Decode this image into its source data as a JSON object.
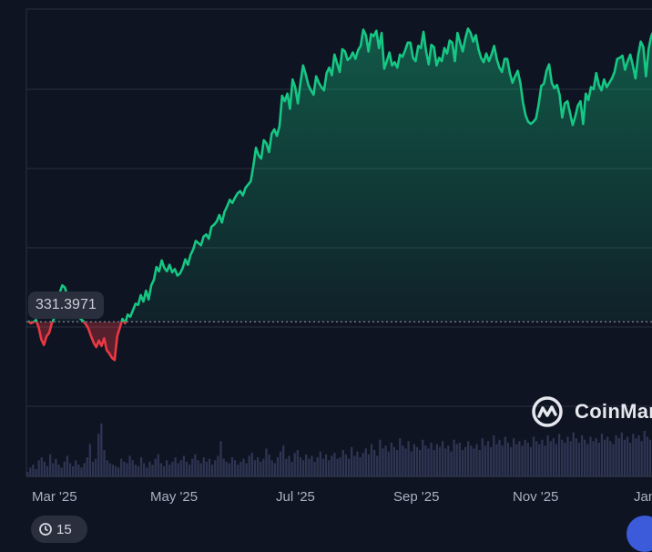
{
  "chart_data": {
    "type": "line",
    "x_ticks": [
      "Mar '25",
      "May '25",
      "Jul '25",
      "Sep '25",
      "Nov '25",
      "Jan"
    ],
    "baseline": 331.3971,
    "baseline_label": "331.3971",
    "ylim": [
      250,
      620
    ],
    "colors": {
      "up": "#16c784",
      "down": "#ea3943",
      "grid": "#2b3140",
      "volume": "#2e3552",
      "background": "#0f1422"
    },
    "series": [
      {
        "values": [
          332,
          330,
          331,
          333,
          326,
          315,
          310,
          318,
          321,
          330,
          335,
          338,
          358,
          365,
          363,
          355,
          348,
          340,
          336,
          338,
          334,
          332,
          329,
          325,
          318,
          312,
          308,
          314,
          309,
          316,
          305,
          302,
          298,
          296,
          318,
          326,
          334,
          330,
          338,
          336,
          342,
          348,
          347,
          356,
          350,
          360,
          352,
          365,
          370,
          382,
          378,
          388,
          381,
          378,
          384,
          377,
          380,
          374,
          376,
          381,
          389,
          384,
          393,
          398,
          406,
          404,
          402,
          410,
          412,
          408,
          419,
          421,
          424,
          430,
          423,
          433,
          438,
          444,
          441,
          446,
          450,
          452,
          448,
          455,
          458,
          461,
          475,
          492,
          485,
          482,
          499,
          496,
          488,
          505,
          509,
          503,
          512,
          540,
          535,
          542,
          528,
          555,
          548,
          533,
          552,
          568,
          560,
          550,
          545,
          541,
          558,
          552,
          548,
          545,
          561,
          566,
          559,
          578,
          570,
          562,
          583,
          581,
          573,
          575,
          580,
          574,
          582,
          586,
          601,
          596,
          581,
          597,
          595,
          600,
          584,
          598,
          565,
          572,
          580,
          568,
          571,
          566,
          578,
          576,
          582,
          589,
          589,
          575,
          572,
          586,
          584,
          599,
          581,
          569,
          587,
          585,
          568,
          575,
          572,
          584,
          579,
          591,
          589,
          572,
          598,
          589,
          581,
          593,
          602,
          598,
          590,
          596,
          583,
          575,
          571,
          579,
          572,
          578,
          586,
          574,
          566,
          562,
          574,
          574,
          561,
          552,
          558,
          563,
          552,
          534,
          522,
          516,
          514,
          516,
          519,
          532,
          549,
          551,
          563,
          569,
          552,
          547,
          550,
          541,
          520,
          533,
          535,
          524,
          513,
          521,
          531,
          535,
          514,
          542,
          536,
          548,
          546,
          561,
          550,
          545,
          555,
          548,
          552,
          556,
          562,
          574,
          575,
          577,
          564,
          572,
          578,
          568,
          556,
          577,
          590,
          585,
          558,
          583,
          595,
          600
        ]
      }
    ],
    "volume": [
      3,
      6,
      8,
      5,
      11,
      13,
      10,
      7,
      15,
      9,
      12,
      8,
      6,
      10,
      14,
      9,
      7,
      11,
      8,
      6,
      9,
      13,
      22,
      10,
      12,
      29,
      36,
      18,
      11,
      9,
      8,
      7,
      6,
      12,
      10,
      9,
      14,
      11,
      8,
      7,
      13,
      9,
      6,
      10,
      8,
      12,
      15,
      9,
      7,
      11,
      8,
      10,
      13,
      9,
      11,
      14,
      10,
      8,
      12,
      15,
      11,
      9,
      13,
      10,
      12,
      8,
      11,
      14,
      24,
      12,
      10,
      9,
      13,
      11,
      8,
      10,
      12,
      9,
      14,
      16,
      11,
      13,
      10,
      12,
      19,
      15,
      11,
      9,
      13,
      17,
      21,
      12,
      14,
      10,
      16,
      18,
      13,
      11,
      15,
      12,
      14,
      10,
      13,
      17,
      12,
      15,
      11,
      14,
      16,
      12,
      13,
      18,
      15,
      12,
      20,
      14,
      17,
      13,
      16,
      19,
      15,
      22,
      18,
      14,
      25,
      19,
      21,
      17,
      23,
      20,
      18,
      26,
      21,
      19,
      24,
      17,
      22,
      20,
      18,
      25,
      21,
      19,
      23,
      18,
      22,
      20,
      24,
      19,
      21,
      17,
      25,
      22,
      23,
      18,
      20,
      24,
      21,
      19,
      22,
      18,
      26,
      21,
      24,
      20,
      28,
      22,
      25,
      21,
      27,
      23,
      20,
      26,
      22,
      24,
      21,
      25,
      23,
      20,
      27,
      24,
      22,
      25,
      21,
      28,
      24,
      26,
      22,
      29,
      25,
      23,
      27,
      24,
      30,
      26,
      23,
      28,
      25,
      22,
      27,
      24,
      26,
      23,
      29,
      25,
      27,
      24,
      22,
      28,
      26,
      30,
      25,
      27,
      23,
      29,
      26,
      28,
      24,
      31,
      27,
      25
    ]
  },
  "watermark": {
    "text": "CoinMar"
  },
  "time_badge": {
    "text": "15"
  }
}
